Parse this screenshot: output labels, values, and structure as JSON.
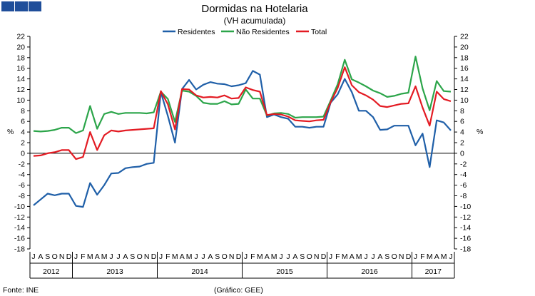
{
  "chart_data": {
    "type": "line",
    "title": "Dormidas na Hotelaria",
    "subtitle": "(VH acumulada)",
    "y_unit_left": "%",
    "y_unit_right": "%",
    "ylim": [
      -18,
      22
    ],
    "yticks": [
      22,
      20,
      18,
      16,
      14,
      12,
      10,
      8,
      6,
      4,
      2,
      0,
      -2,
      -4,
      -6,
      -8,
      -10,
      -12,
      -14,
      -16,
      -18
    ],
    "legend_position": "top-center",
    "month_labels": [
      "J",
      "A",
      "S",
      "O",
      "N",
      "D",
      "J",
      "F",
      "M",
      "A",
      "M",
      "J",
      "J",
      "A",
      "S",
      "O",
      "N",
      "D",
      "J",
      "F",
      "M",
      "A",
      "M",
      "J",
      "J",
      "A",
      "S",
      "O",
      "N",
      "D",
      "J",
      "F",
      "M",
      "A",
      "M",
      "J",
      "J",
      "A",
      "S",
      "O",
      "N",
      "D",
      "J",
      "F",
      "M",
      "A",
      "M",
      "J",
      "J",
      "A",
      "S",
      "O",
      "N",
      "D",
      "J",
      "F",
      "M",
      "A",
      "M",
      "J"
    ],
    "years": [
      {
        "label": "2012",
        "start": 0,
        "end": 6
      },
      {
        "label": "2013",
        "start": 6,
        "end": 18
      },
      {
        "label": "2014",
        "start": 18,
        "end": 30
      },
      {
        "label": "2015",
        "start": 30,
        "end": 42
      },
      {
        "label": "2016",
        "start": 42,
        "end": 54
      },
      {
        "label": "2017",
        "start": 54,
        "end": 60
      }
    ],
    "series": [
      {
        "name": "Residentes",
        "color": "#1f5fa8",
        "values": [
          -9.8,
          -8.7,
          -7.6,
          -7.9,
          -7.6,
          -7.6,
          -9.9,
          -10.1,
          -5.6,
          -7.8,
          -6.0,
          -3.8,
          -3.7,
          -2.8,
          -2.6,
          -2.5,
          -2.0,
          -1.8,
          11.5,
          7.0,
          2.0,
          12.1,
          13.8,
          12.0,
          12.9,
          13.4,
          13.1,
          13.0,
          12.6,
          12.8,
          13.2,
          15.5,
          14.8,
          6.8,
          7.3,
          6.8,
          6.5,
          5.0,
          5.0,
          4.8,
          5.0,
          5.0,
          9.5,
          11.1,
          14.0,
          11.5,
          8.0,
          8.0,
          6.8,
          4.4,
          4.5,
          5.2,
          5.2,
          5.2,
          1.5,
          3.7,
          -2.6,
          6.2,
          5.8,
          4.3
        ]
      },
      {
        "name": "Não Residentes",
        "color": "#2ca54a",
        "values": [
          4.2,
          4.1,
          4.2,
          4.4,
          4.8,
          4.8,
          3.8,
          4.3,
          8.9,
          4.6,
          7.4,
          7.8,
          7.4,
          7.6,
          7.6,
          7.6,
          7.5,
          7.7,
          11.6,
          10.2,
          5.9,
          11.8,
          11.6,
          10.8,
          9.5,
          9.3,
          9.3,
          9.8,
          9.2,
          9.3,
          12.0,
          10.3,
          10.3,
          7.1,
          7.5,
          7.6,
          7.4,
          6.7,
          6.8,
          6.8,
          6.8,
          6.9,
          9.9,
          13.0,
          17.6,
          13.9,
          13.3,
          12.6,
          11.8,
          11.3,
          10.6,
          10.8,
          11.2,
          11.4,
          18.2,
          12.2,
          8.1,
          13.6,
          11.7,
          11.6
        ]
      },
      {
        "name": "Total",
        "color": "#e31b23",
        "values": [
          -0.5,
          -0.4,
          0.0,
          0.2,
          0.6,
          0.6,
          -1.1,
          -0.7,
          4.0,
          0.6,
          3.4,
          4.3,
          4.1,
          4.3,
          4.4,
          4.5,
          4.6,
          4.7,
          11.7,
          9.2,
          4.5,
          12.1,
          12.0,
          10.9,
          10.5,
          10.6,
          10.5,
          10.9,
          10.3,
          10.4,
          12.4,
          11.9,
          11.6,
          7.2,
          7.4,
          7.3,
          6.9,
          6.2,
          6.1,
          6.0,
          6.2,
          6.3,
          9.6,
          12.3,
          16.2,
          12.8,
          11.5,
          10.9,
          10.1,
          8.9,
          8.7,
          9.0,
          9.3,
          9.4,
          12.6,
          8.6,
          5.2,
          11.6,
          10.2,
          9.8
        ]
      }
    ]
  },
  "footer": {
    "source": "Fonte: INE",
    "credit": "(Gráfico: GEE)"
  }
}
